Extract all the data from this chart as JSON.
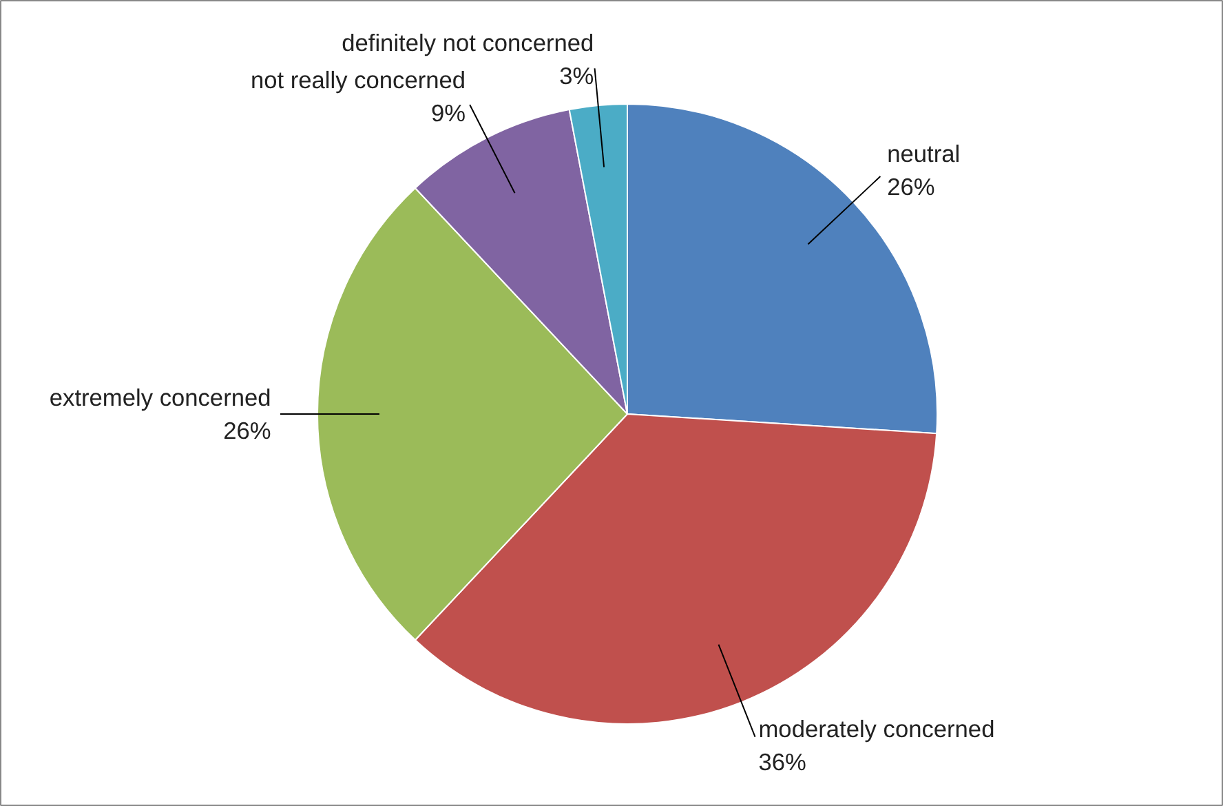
{
  "chart_data": {
    "type": "pie",
    "categories": [
      "neutral",
      "moderately concerned",
      "extremely concerned",
      "not really concerned",
      "definitely not concerned"
    ],
    "values": [
      26,
      36,
      26,
      9,
      3
    ],
    "value_labels": [
      "26%",
      "36%",
      "26%",
      "9%",
      "3%"
    ],
    "colors": [
      "#4f81bd",
      "#c0504d",
      "#9bbb59",
      "#8064a2",
      "#4bacc6"
    ]
  }
}
